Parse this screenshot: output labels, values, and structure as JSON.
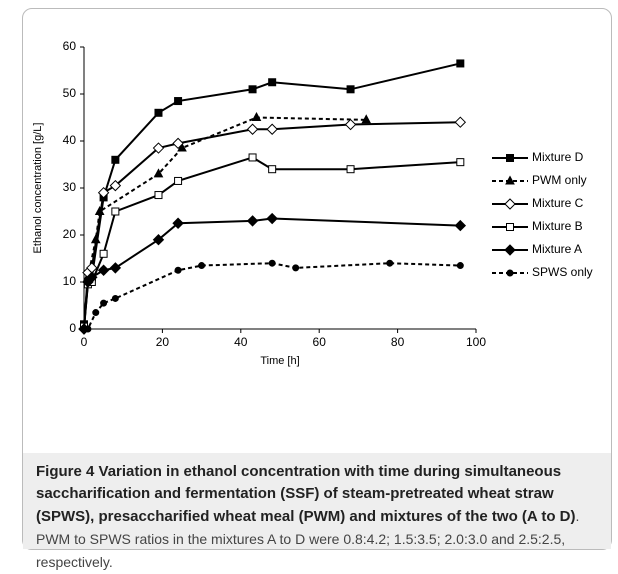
{
  "chart_data": {
    "type": "line",
    "y_label": "Ethanol concentration [g/L]",
    "x_label": "Time [h]",
    "xlim": [
      0,
      100
    ],
    "xticks": [
      0,
      20,
      40,
      60,
      80,
      100
    ],
    "ylim": [
      0,
      60
    ],
    "yticks": [
      0,
      10,
      20,
      30,
      40,
      50,
      60
    ],
    "legend": "right",
    "series": [
      {
        "name": "Mixture D",
        "color": "#000000",
        "marker": "square",
        "filled": true,
        "dashed": false,
        "x": [
          0,
          1,
          2,
          5,
          8,
          19,
          24,
          43,
          48,
          68,
          96
        ],
        "values": [
          1,
          10,
          11,
          28,
          36,
          46,
          48.5,
          51,
          52.5,
          51,
          56.5
        ]
      },
      {
        "name": "PWM only",
        "color": "#000000",
        "marker": "triangle",
        "filled": true,
        "dashed": true,
        "x": [
          0,
          1,
          3,
          4,
          19,
          25,
          44,
          72
        ],
        "values": [
          0.5,
          11,
          19,
          25,
          33,
          38.5,
          45,
          44.5
        ]
      },
      {
        "name": "Mixture C",
        "color": "#000000",
        "marker": "diamond",
        "filled": false,
        "dashed": false,
        "x": [
          0,
          1,
          2,
          5,
          8,
          19,
          24,
          43,
          48,
          68,
          96
        ],
        "values": [
          0,
          12,
          13,
          29,
          30.5,
          38.5,
          39.5,
          42.5,
          42.5,
          43.5,
          44
        ]
      },
      {
        "name": "Mixture B",
        "color": "#000000",
        "marker": "square",
        "filled": false,
        "dashed": false,
        "x": [
          0,
          1,
          2,
          5,
          8,
          19,
          24,
          43,
          48,
          68,
          96
        ],
        "values": [
          0.5,
          9.5,
          10,
          16,
          25,
          28.5,
          31.5,
          36.5,
          34,
          34,
          35.5
        ]
      },
      {
        "name": "Mixture A",
        "color": "#000000",
        "marker": "diamond",
        "filled": true,
        "dashed": false,
        "x": [
          0,
          1,
          2,
          5,
          8,
          19,
          24,
          43,
          48,
          96
        ],
        "values": [
          0,
          10,
          11,
          12.5,
          13,
          19,
          22.5,
          23,
          23.5,
          22
        ]
      },
      {
        "name": "SPWS only",
        "color": "#000000",
        "marker": "circle",
        "filled": true,
        "dashed": true,
        "x": [
          0,
          1,
          3,
          5,
          8,
          24,
          30,
          48,
          54,
          78,
          96
        ],
        "values": [
          0,
          0,
          3.5,
          5.5,
          6.5,
          12.5,
          13.5,
          14,
          13,
          14,
          13.5
        ]
      }
    ]
  },
  "caption": {
    "label": "Figure 4",
    "bold_text": "Variation in ethanol concentration with time during simultaneous saccharification and fermentation (SSF) of steam-pretreated wheat straw (SPWS), presaccharified wheat meal (PWM) and mixtures of the two (A to D)",
    "text": ". PWM to SPWS ratios in the mixtures A to D were 0.8:4.2; 1.5:3.5; 2.0:3.0 and 2.5:2.5, respectively."
  }
}
